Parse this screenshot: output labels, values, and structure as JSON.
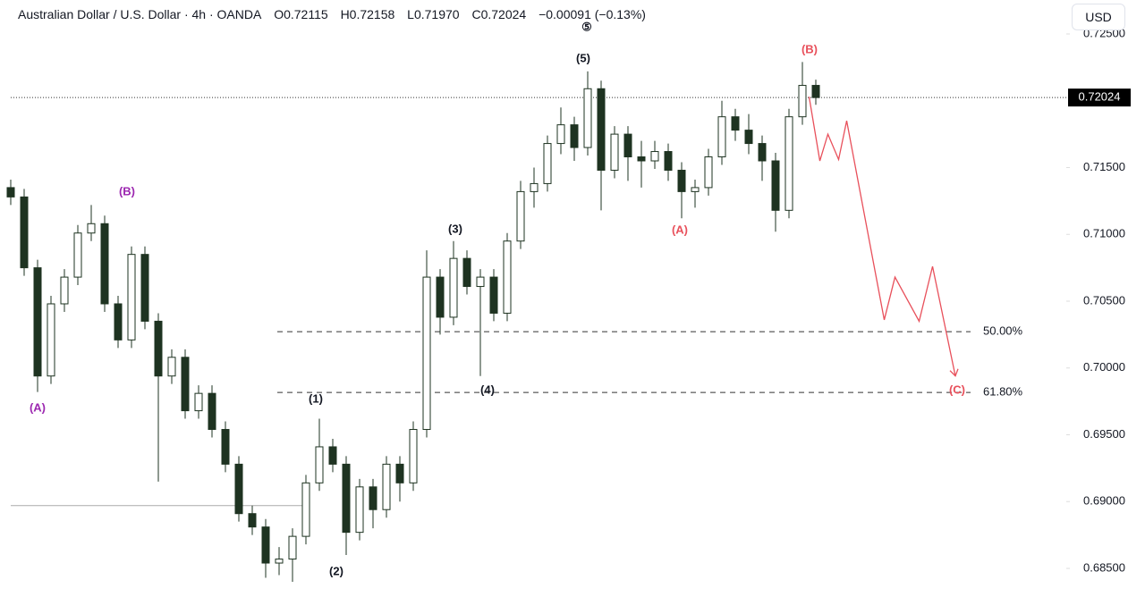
{
  "header": {
    "symbol": "Australian Dollar / U.S. Dollar · 4h · OANDA",
    "open": "O0.72115",
    "high": "H0.72158",
    "low": "L0.71970",
    "close": "C0.72024",
    "change": "−0.00091 (−0.13%)"
  },
  "currency_button": "USD",
  "chart_data": {
    "type": "candlestick",
    "ylim": [
      0.68286,
      0.72754
    ],
    "yticks": [
      {
        "value": 0.725,
        "label": "0.72500"
      },
      {
        "value": 0.715,
        "label": "0.71500"
      },
      {
        "value": 0.71,
        "label": "0.71000"
      },
      {
        "value": 0.705,
        "label": "0.70500"
      },
      {
        "value": 0.7,
        "label": "0.70000"
      },
      {
        "value": 0.695,
        "label": "0.69500"
      },
      {
        "value": 0.69,
        "label": "0.69000"
      },
      {
        "value": 0.685,
        "label": "0.68500"
      }
    ],
    "current_price": {
      "value": 0.72024,
      "label": "0.72024"
    },
    "support_line": 0.6897,
    "fib_levels": [
      {
        "value": 0.70272,
        "label": "50.00%"
      },
      {
        "value": 0.69817,
        "label": "61.80%"
      }
    ],
    "wave_labels": [
      "⑤",
      "(5)",
      "(B)",
      "(B)",
      "(A)",
      "(3)",
      "(1)",
      "(2)",
      "(4)",
      "(A)",
      "(C)"
    ],
    "projection": {
      "color": "#e8505b",
      "x": [
        59.5,
        60.3,
        60.9,
        61.7,
        62.3,
        65.1,
        65.9,
        67.7,
        68.7,
        70.4
      ],
      "values": [
        0.7203,
        0.7155,
        0.7175,
        0.7156,
        0.7185,
        0.7036,
        0.7068,
        0.7035,
        0.7076,
        0.6994
      ]
    },
    "color": "#1e3321",
    "ohlc": [
      [
        0.7135,
        0.7141,
        0.7122,
        0.7128
      ],
      [
        0.7128,
        0.7134,
        0.7069,
        0.7075
      ],
      [
        0.7075,
        0.7081,
        0.6982,
        0.6994
      ],
      [
        0.6994,
        0.7054,
        0.6988,
        0.7048
      ],
      [
        0.7048,
        0.7074,
        0.7042,
        0.7068
      ],
      [
        0.7068,
        0.7107,
        0.7062,
        0.7101
      ],
      [
        0.7101,
        0.7122,
        0.7095,
        0.7108
      ],
      [
        0.7108,
        0.7114,
        0.7042,
        0.7048
      ],
      [
        0.7048,
        0.7054,
        0.7015,
        0.7021
      ],
      [
        0.7021,
        0.7091,
        0.7015,
        0.7085
      ],
      [
        0.7085,
        0.7091,
        0.7029,
        0.7035
      ],
      [
        0.7035,
        0.7041,
        0.6915,
        0.6994
      ],
      [
        0.6994,
        0.7014,
        0.6988,
        0.7008
      ],
      [
        0.7008,
        0.7014,
        0.6962,
        0.6968
      ],
      [
        0.6968,
        0.6987,
        0.6962,
        0.6981
      ],
      [
        0.6981,
        0.6987,
        0.6948,
        0.6954
      ],
      [
        0.6954,
        0.696,
        0.6922,
        0.6928
      ],
      [
        0.6928,
        0.6934,
        0.6885,
        0.6891
      ],
      [
        0.6891,
        0.6897,
        0.6875,
        0.6881
      ],
      [
        0.6881,
        0.6887,
        0.6843,
        0.6854
      ],
      [
        0.6854,
        0.6866,
        0.6845,
        0.6857
      ],
      [
        0.6857,
        0.688,
        0.684,
        0.6874
      ],
      [
        0.6874,
        0.692,
        0.6868,
        0.6914
      ],
      [
        0.6914,
        0.6962,
        0.6908,
        0.6941
      ],
      [
        0.6941,
        0.6947,
        0.6922,
        0.6928
      ],
      [
        0.6928,
        0.6934,
        0.686,
        0.6877
      ],
      [
        0.6877,
        0.6917,
        0.6871,
        0.6911
      ],
      [
        0.6911,
        0.6917,
        0.688,
        0.6894
      ],
      [
        0.6894,
        0.6934,
        0.6888,
        0.6928
      ],
      [
        0.6928,
        0.6934,
        0.69,
        0.6914
      ],
      [
        0.6914,
        0.696,
        0.6908,
        0.6954
      ],
      [
        0.6954,
        0.7088,
        0.6948,
        0.7068
      ],
      [
        0.7068,
        0.7074,
        0.7025,
        0.7038
      ],
      [
        0.7038,
        0.7095,
        0.7032,
        0.7082
      ],
      [
        0.7082,
        0.7088,
        0.7055,
        0.7061
      ],
      [
        0.7061,
        0.7074,
        0.6994,
        0.7068
      ],
      [
        0.7068,
        0.7074,
        0.7035,
        0.7041
      ],
      [
        0.7041,
        0.7101,
        0.7035,
        0.7095
      ],
      [
        0.7095,
        0.714,
        0.7089,
        0.7132
      ],
      [
        0.7132,
        0.715,
        0.712,
        0.7138
      ],
      [
        0.7138,
        0.7174,
        0.7132,
        0.7168
      ],
      [
        0.7168,
        0.7195,
        0.716,
        0.7182
      ],
      [
        0.7182,
        0.7188,
        0.7155,
        0.7165
      ],
      [
        0.7165,
        0.7222,
        0.7159,
        0.7209
      ],
      [
        0.7209,
        0.7215,
        0.7118,
        0.7148
      ],
      [
        0.7148,
        0.7181,
        0.7142,
        0.7175
      ],
      [
        0.7175,
        0.7181,
        0.714,
        0.7158
      ],
      [
        0.7158,
        0.717,
        0.7135,
        0.7155
      ],
      [
        0.7155,
        0.717,
        0.7149,
        0.7162
      ],
      [
        0.7162,
        0.7168,
        0.714,
        0.7148
      ],
      [
        0.7148,
        0.7154,
        0.7112,
        0.7132
      ],
      [
        0.7132,
        0.7141,
        0.712,
        0.7135
      ],
      [
        0.7135,
        0.7164,
        0.7129,
        0.7158
      ],
      [
        0.7158,
        0.72,
        0.7152,
        0.7188
      ],
      [
        0.7188,
        0.7194,
        0.717,
        0.7178
      ],
      [
        0.7178,
        0.719,
        0.716,
        0.7168
      ],
      [
        0.7168,
        0.7174,
        0.714,
        0.7155
      ],
      [
        0.7155,
        0.7161,
        0.7102,
        0.7118
      ],
      [
        0.7118,
        0.7194,
        0.7112,
        0.7188
      ],
      [
        0.7188,
        0.7229,
        0.7182,
        0.72115
      ],
      [
        0.72115,
        0.72158,
        0.7197,
        0.72024
      ]
    ]
  }
}
